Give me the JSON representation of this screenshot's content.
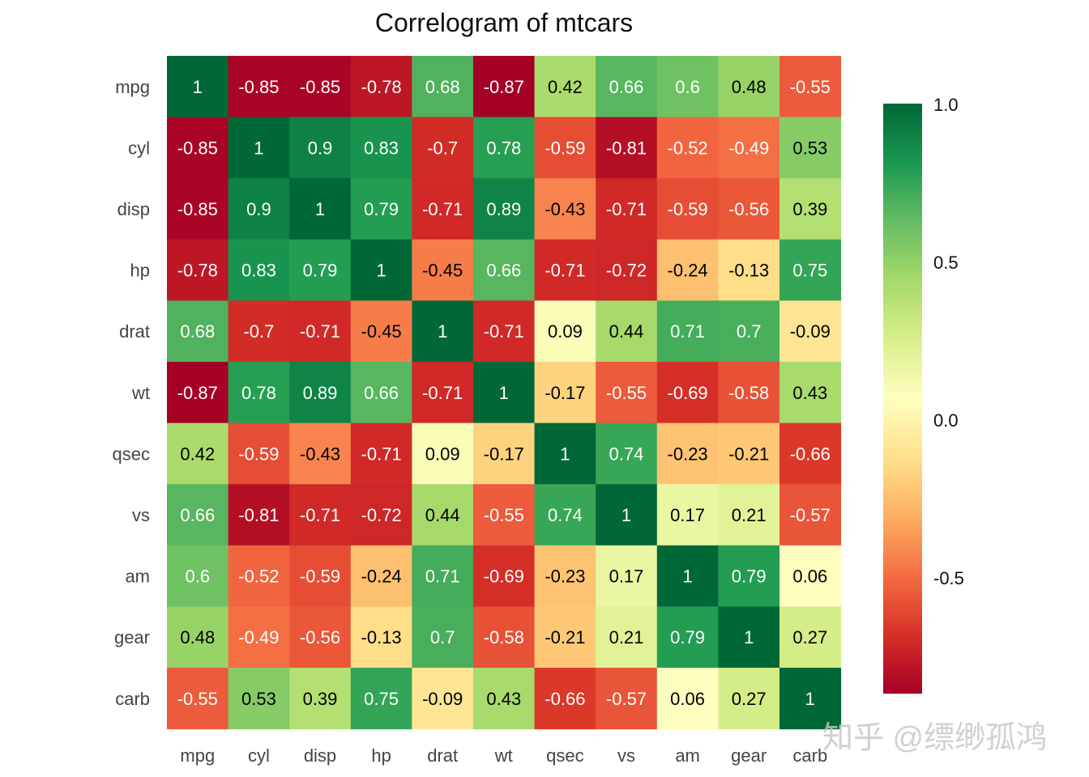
{
  "chart_data": {
    "type": "heatmap",
    "title": "Correlogram of mtcars",
    "x_labels": [
      "mpg",
      "cyl",
      "disp",
      "hp",
      "drat",
      "wt",
      "qsec",
      "vs",
      "am",
      "gear",
      "carb"
    ],
    "y_labels": [
      "mpg",
      "cyl",
      "disp",
      "hp",
      "drat",
      "wt",
      "qsec",
      "vs",
      "am",
      "gear",
      "carb"
    ],
    "values": [
      [
        1,
        -0.85,
        -0.85,
        -0.78,
        0.68,
        -0.87,
        0.42,
        0.66,
        0.6,
        0.48,
        -0.55
      ],
      [
        -0.85,
        1,
        0.9,
        0.83,
        -0.7,
        0.78,
        -0.59,
        -0.81,
        -0.52,
        -0.49,
        0.53
      ],
      [
        -0.85,
        0.9,
        1,
        0.79,
        -0.71,
        0.89,
        -0.43,
        -0.71,
        -0.59,
        -0.56,
        0.39
      ],
      [
        -0.78,
        0.83,
        0.79,
        1,
        -0.45,
        0.66,
        -0.71,
        -0.72,
        -0.24,
        -0.13,
        0.75
      ],
      [
        0.68,
        -0.7,
        -0.71,
        -0.45,
        1,
        -0.71,
        0.09,
        0.44,
        0.71,
        0.7,
        -0.09
      ],
      [
        -0.87,
        0.78,
        0.89,
        0.66,
        -0.71,
        1,
        -0.17,
        -0.55,
        -0.69,
        -0.58,
        0.43
      ],
      [
        0.42,
        -0.59,
        -0.43,
        -0.71,
        0.09,
        -0.17,
        1,
        0.74,
        -0.23,
        -0.21,
        -0.66
      ],
      [
        0.66,
        -0.81,
        -0.71,
        -0.72,
        0.44,
        -0.55,
        0.74,
        1,
        0.17,
        0.21,
        -0.57
      ],
      [
        0.6,
        -0.52,
        -0.59,
        -0.24,
        0.71,
        -0.69,
        -0.23,
        0.17,
        1,
        0.79,
        0.06
      ],
      [
        0.48,
        -0.49,
        -0.56,
        -0.13,
        0.7,
        -0.58,
        -0.21,
        0.21,
        0.79,
        1,
        0.27
      ],
      [
        -0.55,
        0.53,
        0.39,
        0.75,
        -0.09,
        0.43,
        -0.66,
        -0.57,
        0.06,
        0.27,
        1
      ]
    ],
    "colormap": "RdYlGn",
    "color_range": [
      -0.87,
      1.0
    ],
    "colorbar": {
      "ticks": [
        1.0,
        0.5,
        0.0,
        -0.5
      ],
      "tick_labels": [
        "1.0",
        "0.5",
        "0.0",
        "-0.5"
      ]
    },
    "annotations": true,
    "grid": false
  },
  "watermark": "知乎 @缥缈孤鸿"
}
